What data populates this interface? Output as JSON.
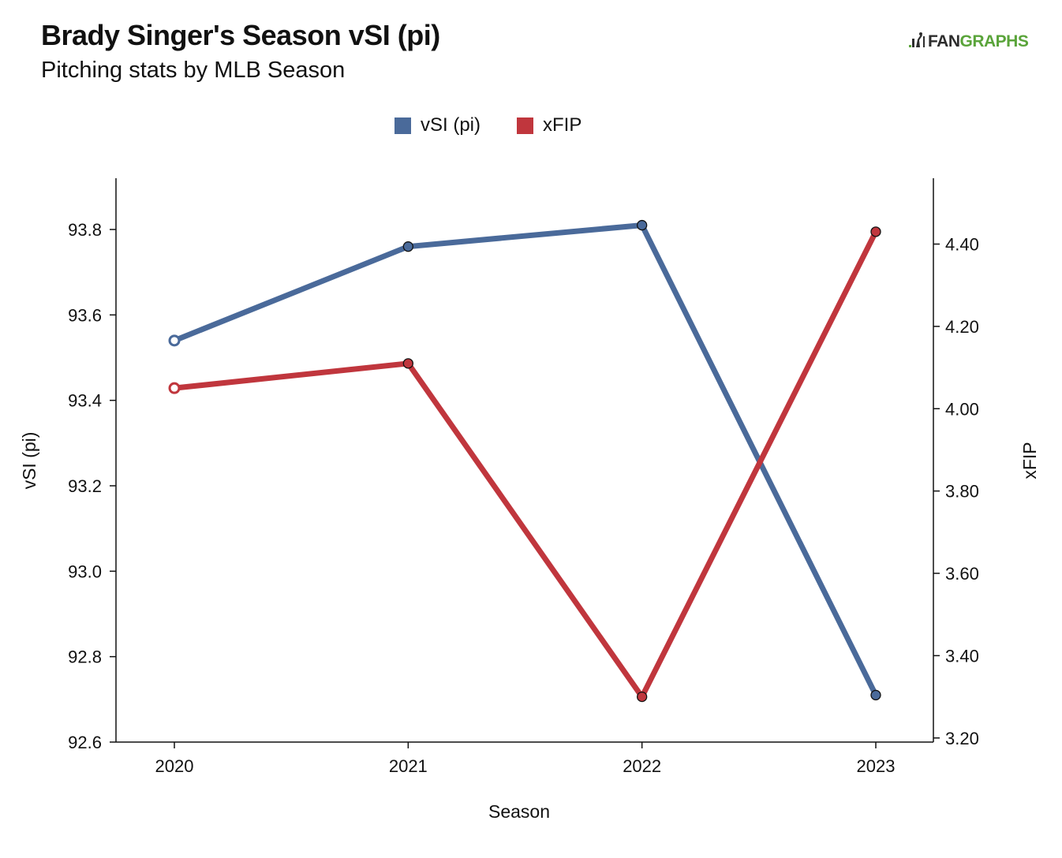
{
  "header": {
    "title": "Brady Singer's Season vSI (pi)",
    "subtitle": "Pitching stats by MLB Season"
  },
  "logo": {
    "part1": "FAN",
    "part2": "GRAPHS",
    "color_dark": "#2d2d2d",
    "color_green": "#5aa43a"
  },
  "legend": {
    "items": [
      {
        "label": "vSI (pi)",
        "color": "#4a6a9a"
      },
      {
        "label": "xFIP",
        "color": "#c0363d"
      }
    ]
  },
  "chart_data": {
    "type": "line",
    "categories": [
      "2020",
      "2021",
      "2022",
      "2023"
    ],
    "xlabel": "Season",
    "ylabel_left": "vSI (pi)",
    "ylabel_right": "xFIP",
    "ylim_left": [
      92.6,
      93.92
    ],
    "ylim_right": [
      3.19,
      4.56
    ],
    "yticks_left": [
      "92.6",
      "92.8",
      "93.0",
      "93.2",
      "93.4",
      "93.6",
      "93.8"
    ],
    "yticks_left_values": [
      92.6,
      92.8,
      93.0,
      93.2,
      93.4,
      93.6,
      93.8
    ],
    "yticks_right": [
      "3.20",
      "3.40",
      "3.60",
      "3.80",
      "4.00",
      "4.20",
      "4.40"
    ],
    "yticks_right_values": [
      3.2,
      3.4,
      3.6,
      3.8,
      4.0,
      4.2,
      4.4
    ],
    "grid": false,
    "legend_position": "top-center",
    "series": [
      {
        "name": "vSI (pi)",
        "axis": "left",
        "color": "#4a6a9a",
        "values": [
          93.54,
          93.76,
          93.81,
          92.71
        ]
      },
      {
        "name": "xFIP",
        "axis": "right",
        "color": "#c0363d",
        "values": [
          4.05,
          4.11,
          3.3,
          4.43
        ]
      }
    ]
  }
}
